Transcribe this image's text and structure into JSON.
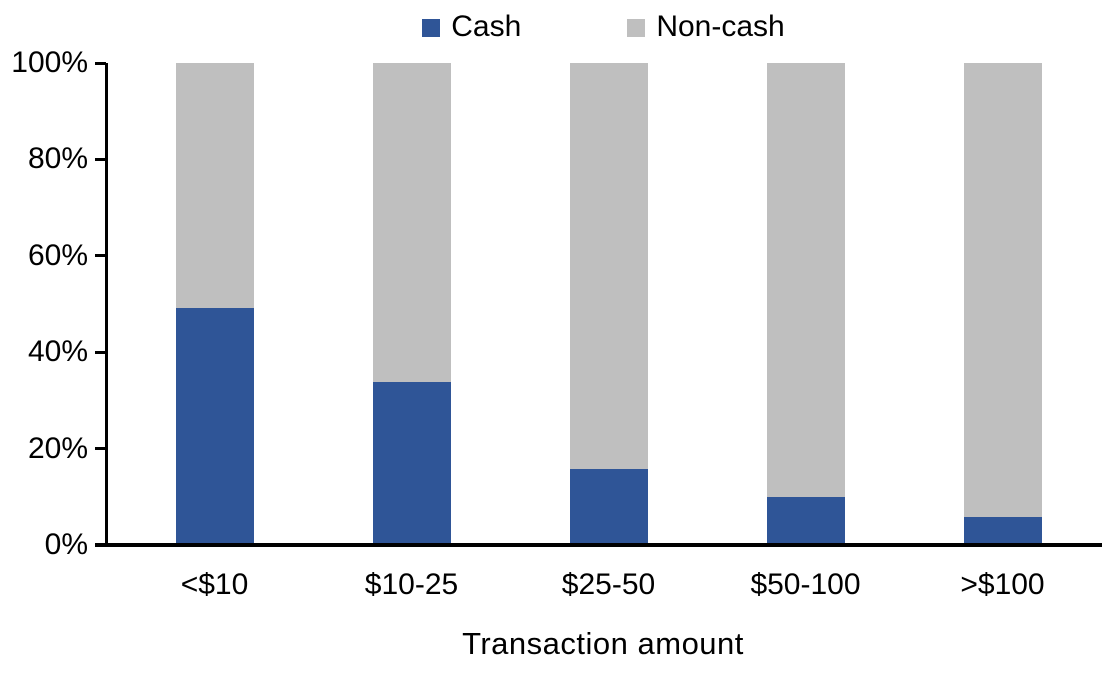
{
  "chart_data": {
    "type": "bar",
    "stacked": true,
    "orientation": "vertical",
    "categories": [
      "<$10",
      "$10-25",
      "$25-50",
      "$50-100",
      ">$100"
    ],
    "series": [
      {
        "name": "Cash",
        "color": "#2F5597",
        "values": [
          49,
          33.5,
          15.5,
          9.5,
          5.5
        ]
      },
      {
        "name": "Non-cash",
        "color": "#BFBFBF",
        "values": [
          51,
          66.5,
          84.5,
          90.5,
          94.5
        ]
      }
    ],
    "xlabel": "Transaction amount",
    "ylabel": "",
    "ylim": [
      0,
      100
    ],
    "yticks": [
      0,
      20,
      40,
      60,
      80,
      100
    ],
    "ytick_labels": [
      "0%",
      "20%",
      "40%",
      "60%",
      "80%",
      "100%"
    ],
    "legend_position": "top-center",
    "grid": false,
    "axis_color": "#000000",
    "text_color": "#000000"
  }
}
